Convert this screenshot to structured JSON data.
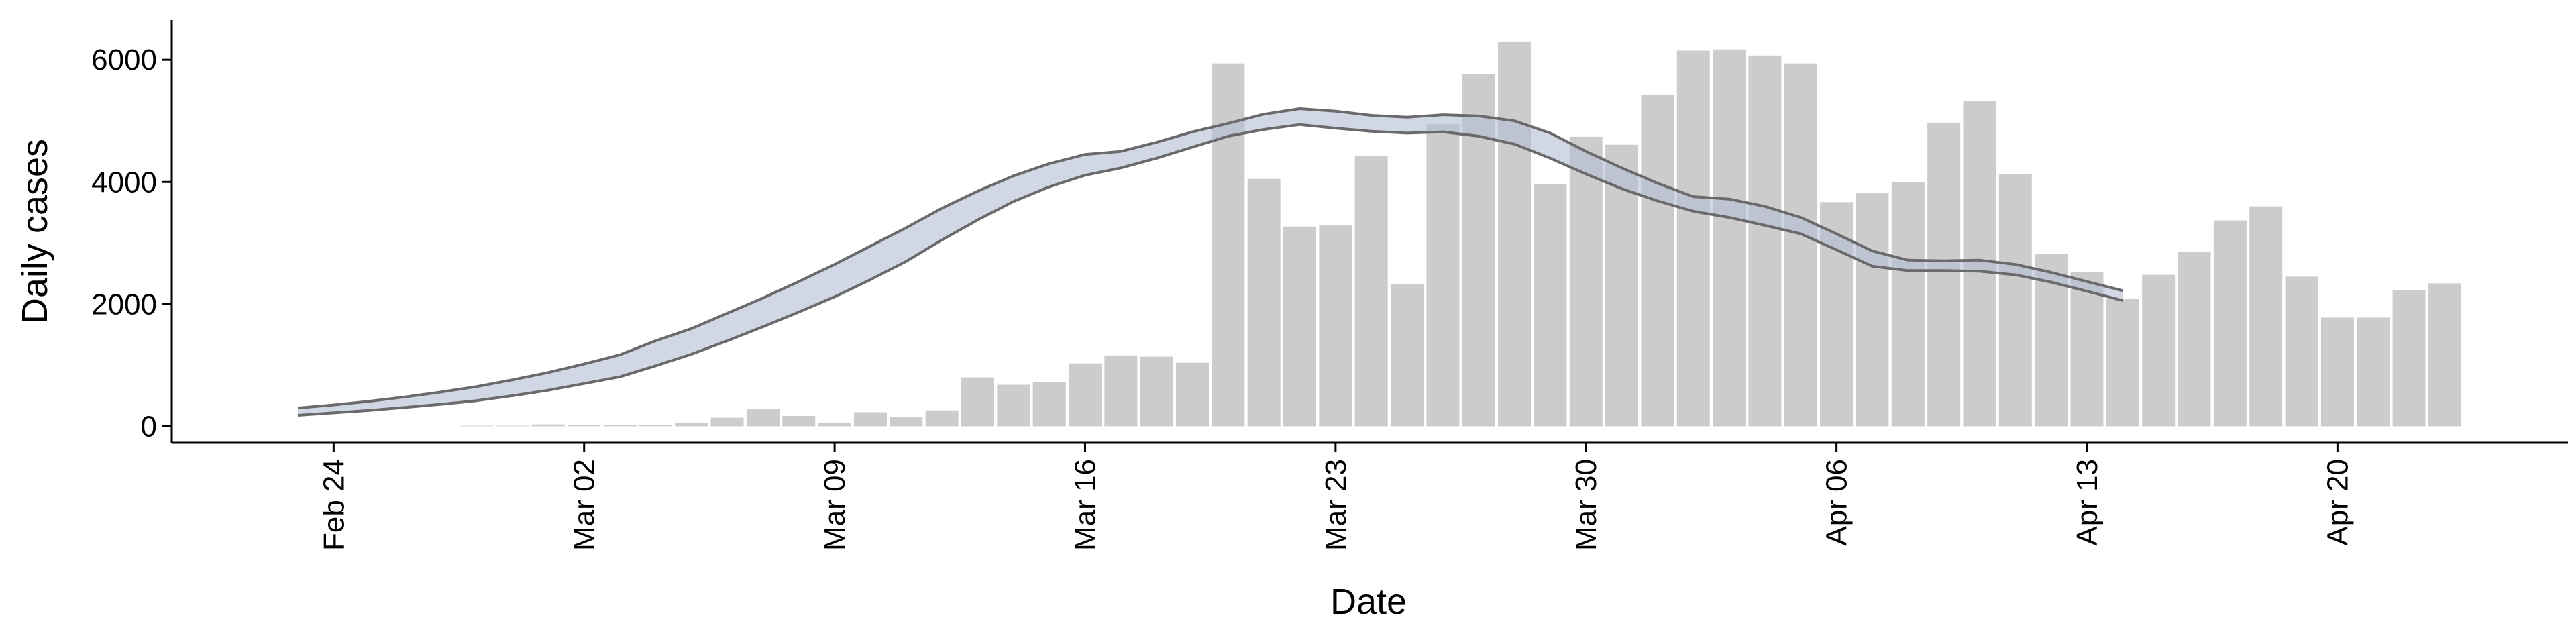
{
  "chart_data": {
    "type": "bar",
    "xlabel": "Date",
    "ylabel": "Daily cases",
    "x": [
      "Feb 23",
      "Feb 24",
      "Feb 25",
      "Feb 26",
      "Feb 27",
      "Feb 28",
      "Feb 29",
      "Mar 01",
      "Mar 02",
      "Mar 03",
      "Mar 04",
      "Mar 05",
      "Mar 06",
      "Mar 07",
      "Mar 08",
      "Mar 09",
      "Mar 10",
      "Mar 11",
      "Mar 12",
      "Mar 13",
      "Mar 14",
      "Mar 15",
      "Mar 16",
      "Mar 17",
      "Mar 18",
      "Mar 19",
      "Mar 20",
      "Mar 21",
      "Mar 22",
      "Mar 23",
      "Mar 24",
      "Mar 25",
      "Mar 26",
      "Mar 27",
      "Mar 28",
      "Mar 29",
      "Mar 30",
      "Mar 31",
      "Apr 01",
      "Apr 02",
      "Apr 03",
      "Apr 04",
      "Apr 05",
      "Apr 06",
      "Apr 07",
      "Apr 08",
      "Apr 09",
      "Apr 10",
      "Apr 11",
      "Apr 12",
      "Apr 13",
      "Apr 14",
      "Apr 15",
      "Apr 16",
      "Apr 17",
      "Apr 18",
      "Apr 19",
      "Apr 20",
      "Apr 21",
      "Apr 22",
      "Apr 23"
    ],
    "xticks": [
      "Feb 24",
      "Mar 02",
      "Mar 09",
      "Mar 16",
      "Mar 23",
      "Mar 30",
      "Apr 06",
      "Apr 13",
      "Apr 20"
    ],
    "ylim": [
      -270,
      6650
    ],
    "yticks": [
      0,
      2000,
      4000,
      6000
    ],
    "band_color": "#b4bdd6",
    "series": [
      {
        "type": "bar",
        "color": "#cccccc",
        "values": [
          null,
          null,
          null,
          null,
          null,
          10,
          10,
          30,
          15,
          20,
          20,
          60,
          140,
          290,
          170,
          60,
          230,
          150,
          260,
          800,
          680,
          720,
          1030,
          1160,
          1140,
          1040,
          5940,
          4050,
          3270,
          3300,
          4420,
          2330,
          4950,
          5770,
          6300,
          3960,
          4740,
          4610,
          5430,
          6150,
          6170,
          6070,
          5940,
          3670,
          3820,
          4000,
          4970,
          5320,
          4130,
          2820,
          2530,
          2080,
          2480,
          2860,
          3370,
          3600,
          2450,
          1780,
          1780,
          2230,
          2340
        ]
      },
      {
        "type": "line",
        "color": "#6a6a6a",
        "values": [
          300,
          350,
          410,
          480,
          560,
          650,
          760,
          880,
          1020,
          1170,
          1400,
          1600,
          1850,
          2100,
          2370,
          2650,
          2950,
          3250,
          3570,
          3850,
          4100,
          4300,
          4450,
          4500,
          4650,
          4820,
          4960,
          5110,
          5200,
          5160,
          5090,
          5060,
          5100,
          5080,
          5000,
          4800,
          4500,
          4230,
          3980,
          3760,
          3720,
          3600,
          3420,
          3150,
          2870,
          2720,
          2710,
          2720,
          2650,
          2520,
          2370,
          2220,
          null,
          null,
          null,
          null,
          null,
          null,
          null,
          null,
          null
        ]
      },
      {
        "type": "line",
        "color": "#6a6a6a",
        "values": [
          180,
          220,
          260,
          310,
          360,
          420,
          500,
          590,
          700,
          810,
          990,
          1180,
          1400,
          1630,
          1870,
          2120,
          2400,
          2700,
          3050,
          3380,
          3680,
          3920,
          4110,
          4230,
          4390,
          4570,
          4750,
          4860,
          4940,
          4880,
          4830,
          4800,
          4820,
          4750,
          4620,
          4390,
          4130,
          3890,
          3690,
          3520,
          3420,
          3290,
          3150,
          2890,
          2620,
          2550,
          2550,
          2540,
          2480,
          2360,
          2210,
          2060,
          null,
          null,
          null,
          null,
          null,
          null,
          null,
          null,
          null
        ]
      }
    ]
  }
}
